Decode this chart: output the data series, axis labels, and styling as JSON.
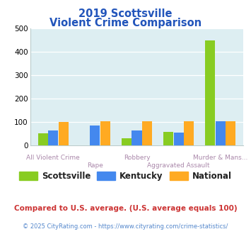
{
  "title_line1": "2019 Scottsville",
  "title_line2": "Violent Crime Comparison",
  "categories": [
    "All Violent Crime",
    "Rape",
    "Robbery",
    "Aggravated Assault",
    "Murder & Mans..."
  ],
  "scottsville": [
    50,
    0,
    28,
    57,
    447
  ],
  "kentucky": [
    62,
    85,
    62,
    52,
    103
  ],
  "national": [
    100,
    103,
    102,
    103,
    103
  ],
  "colors": {
    "scottsville": "#88cc22",
    "kentucky": "#4488ee",
    "national": "#ffaa22"
  },
  "ylim": [
    0,
    500
  ],
  "yticks": [
    0,
    100,
    200,
    300,
    400,
    500
  ],
  "bg_color": "#ddeef2",
  "title_color": "#2255bb",
  "xlabel_color": "#aa88aa",
  "footnote1": "Compared to U.S. average. (U.S. average equals 100)",
  "footnote2": "© 2025 CityRating.com - https://www.cityrating.com/crime-statistics/",
  "footnote1_color": "#cc3333",
  "footnote2_color": "#5588cc"
}
